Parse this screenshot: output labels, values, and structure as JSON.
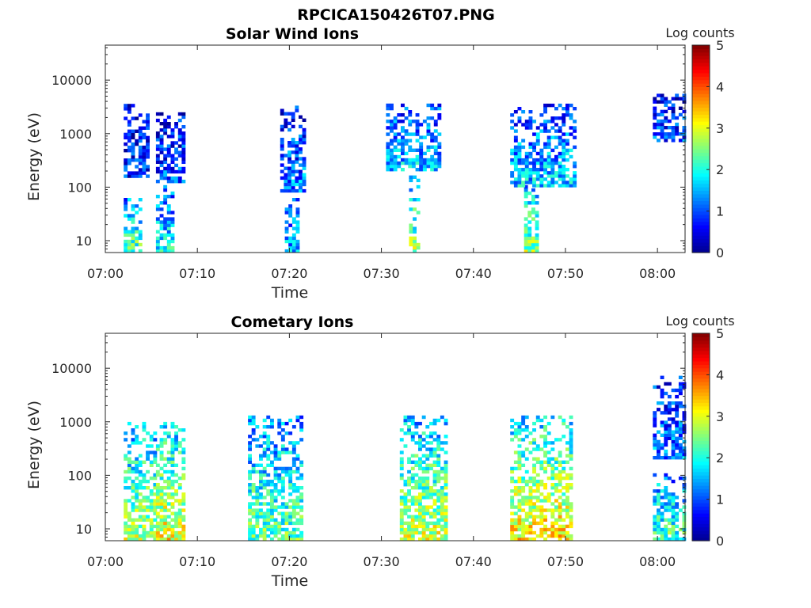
{
  "figure": {
    "title": "RPCICA150426T07.PNG"
  },
  "colorscale": [
    "#00008f",
    "#0000ff",
    "#0080ff",
    "#00ffff",
    "#80ff80",
    "#ffff00",
    "#ff8000",
    "#ff0000",
    "#800000"
  ],
  "chart_data": [
    {
      "type": "heatmap",
      "title": "Solar Wind Ions",
      "xlabel": "Time",
      "ylabel": "Energy (eV)",
      "x_scale": "time",
      "y_scale": "log",
      "xlim": [
        "07:00",
        "08:03"
      ],
      "ylim": [
        6,
        45000
      ],
      "xticks": [
        "07:00",
        "07:10",
        "07:20",
        "07:30",
        "07:40",
        "07:50",
        "08:00"
      ],
      "yticks": [
        "10",
        "100",
        "1000",
        "10000"
      ],
      "colorbar": {
        "label": "Log counts",
        "range": [
          0,
          5
        ],
        "ticks": [
          "0",
          "1",
          "2",
          "3",
          "4",
          "5"
        ]
      },
      "clusters": [
        {
          "t0": "07:02:00",
          "t1": "07:04:00",
          "e_low": 6,
          "e_high": 60,
          "level": 1.9
        },
        {
          "t0": "07:02:00",
          "t1": "07:04:30",
          "e_low": 150,
          "e_high": 3500,
          "level": 0.6
        },
        {
          "t0": "07:05:30",
          "t1": "07:07:30",
          "e_low": 6,
          "e_high": 100,
          "level": 1.5
        },
        {
          "t0": "07:05:30",
          "t1": "07:08:30",
          "e_low": 120,
          "e_high": 2500,
          "level": 0.8
        },
        {
          "t0": "07:19:30",
          "t1": "07:21:00",
          "e_low": 6,
          "e_high": 60,
          "level": 1.2
        },
        {
          "t0": "07:19:00",
          "t1": "07:21:30",
          "e_low": 80,
          "e_high": 3000,
          "level": 1.0
        },
        {
          "t0": "07:33:00",
          "t1": "07:34:00",
          "e_low": 6,
          "e_high": 150,
          "level": 2.1
        },
        {
          "t0": "07:30:30",
          "t1": "07:36:30",
          "e_low": 200,
          "e_high": 3500,
          "level": 1.3
        },
        {
          "t0": "07:45:30",
          "t1": "07:47:00",
          "e_low": 6,
          "e_high": 100,
          "level": 2.1
        },
        {
          "t0": "07:44:00",
          "t1": "07:51:00",
          "e_low": 100,
          "e_high": 3500,
          "level": 1.3
        },
        {
          "t0": "07:59:30",
          "t1": "08:03:00",
          "e_low": 700,
          "e_high": 5000,
          "level": 0.8
        }
      ]
    },
    {
      "type": "heatmap",
      "title": "Cometary Ions",
      "xlabel": "Time",
      "ylabel": "Energy (eV)",
      "x_scale": "time",
      "y_scale": "log",
      "xlim": [
        "07:00",
        "08:03"
      ],
      "ylim": [
        6,
        45000
      ],
      "xticks": [
        "07:00",
        "07:10",
        "07:20",
        "07:30",
        "07:40",
        "07:50",
        "08:00"
      ],
      "yticks": [
        "10",
        "100",
        "1000",
        "10000"
      ],
      "colorbar": {
        "label": "Log counts",
        "range": [
          0,
          5
        ],
        "ticks": [
          "0",
          "1",
          "2",
          "3",
          "4",
          "5"
        ]
      },
      "clusters": [
        {
          "t0": "07:02:00",
          "t1": "07:05:30",
          "e_low": 6,
          "e_high": 900,
          "level": 2.2
        },
        {
          "t0": "07:05:30",
          "t1": "07:08:30",
          "e_low": 6,
          "e_high": 900,
          "level": 2.5
        },
        {
          "t0": "07:15:30",
          "t1": "07:21:30",
          "e_low": 6,
          "e_high": 1200,
          "level": 1.9
        },
        {
          "t0": "07:32:00",
          "t1": "07:37:00",
          "e_low": 6,
          "e_high": 1200,
          "level": 2.3
        },
        {
          "t0": "07:44:00",
          "t1": "07:50:30",
          "e_low": 6,
          "e_high": 1300,
          "level": 2.6
        },
        {
          "t0": "07:59:30",
          "t1": "08:03:00",
          "e_low": 6,
          "e_high": 100,
          "level": 1.8
        },
        {
          "t0": "07:59:30",
          "t1": "08:03:00",
          "e_low": 200,
          "e_high": 7000,
          "level": 1.0
        }
      ]
    }
  ]
}
